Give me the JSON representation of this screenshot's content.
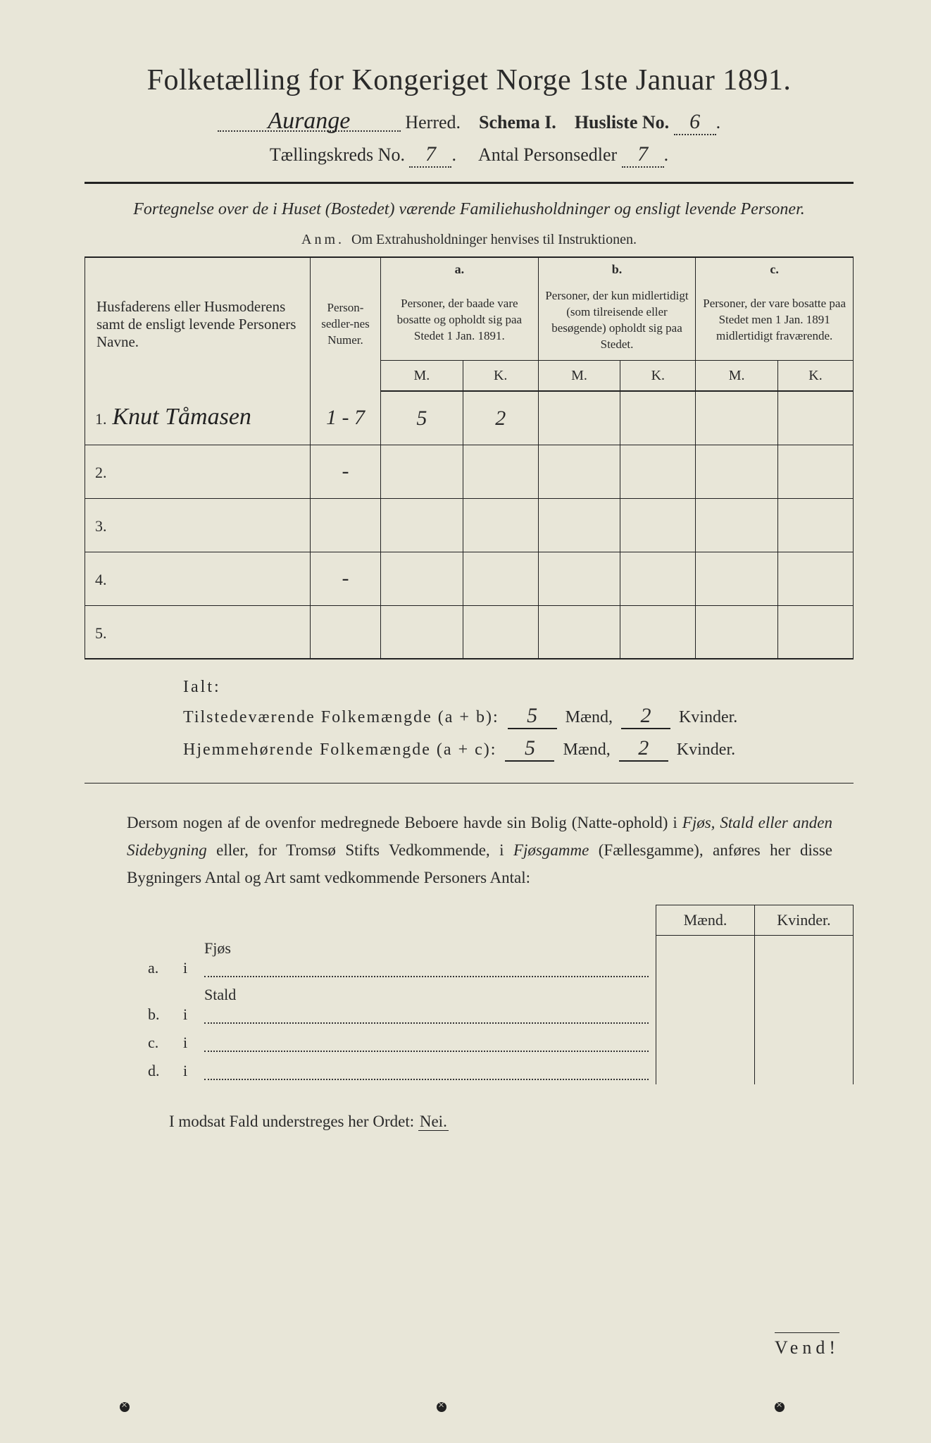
{
  "title": "Folketælling for Kongeriget Norge 1ste Januar 1891.",
  "header": {
    "herred_handwritten": "Aurange",
    "herred_label": "Herred.",
    "schema_label": "Schema I.",
    "husliste_label": "Husliste No.",
    "husliste_value": "6",
    "kreds_label": "Tællingskreds No.",
    "kreds_value": "7",
    "personsedler_label": "Antal Personsedler",
    "personsedler_value": "7"
  },
  "section_title": "Fortegnelse over de i Huset (Bostedet) værende Familiehusholdninger og ensligt levende Personer.",
  "anm": {
    "label": "Anm.",
    "text": "Om Extrahusholdninger henvises til Instruktionen."
  },
  "columns": {
    "name_header": "Husfaderens eller Husmoderens samt de ensligt levende Personers Navne.",
    "numer_header": "Person-sedler-nes Numer.",
    "a_label": "a.",
    "a_text": "Personer, der baade vare bosatte og opholdt sig paa Stedet 1 Jan. 1891.",
    "b_label": "b.",
    "b_text": "Personer, der kun midlertidigt (som tilreisende eller besøgende) opholdt sig paa Stedet.",
    "c_label": "c.",
    "c_text": "Personer, der vare bosatte paa Stedet men 1 Jan. 1891 midlertidigt fraværende.",
    "M": "M.",
    "K": "K."
  },
  "rows": [
    {
      "n": "1.",
      "name": "Knut Tåmasen",
      "numer": "1 - 7",
      "aM": "5",
      "aK": "2",
      "bM": "",
      "bK": "",
      "cM": "",
      "cK": ""
    },
    {
      "n": "2.",
      "name": "",
      "numer": "-",
      "aM": "",
      "aK": "",
      "bM": "",
      "bK": "",
      "cM": "",
      "cK": ""
    },
    {
      "n": "3.",
      "name": "",
      "numer": "",
      "aM": "",
      "aK": "",
      "bM": "",
      "bK": "",
      "cM": "",
      "cK": ""
    },
    {
      "n": "4.",
      "name": "",
      "numer": "-",
      "aM": "",
      "aK": "",
      "bM": "",
      "bK": "",
      "cM": "",
      "cK": ""
    },
    {
      "n": "5.",
      "name": "",
      "numer": "",
      "aM": "",
      "aK": "",
      "bM": "",
      "bK": "",
      "cM": "",
      "cK": ""
    }
  ],
  "totals": {
    "ialt": "Ialt:",
    "present_label": "Tilstedeværende Folkemængde (a + b):",
    "home_label": "Hjemmehørende Folkemængde (a + c):",
    "maend": "Mænd,",
    "kvinder": "Kvinder.",
    "present_m": "5",
    "present_k": "2",
    "home_m": "5",
    "home_k": "2"
  },
  "body_text": {
    "part1": "Dersom nogen af de ovenfor medregnede Beboere havde sin Bolig (Natte-ophold) i ",
    "em1": "Fjøs, Stald eller anden Sidebygning",
    "part2": " eller, for Tromsø Stifts Vedkommende, i ",
    "em2": "Fjøsgamme",
    "part3": " (Fællesgamme), anføres her disse Bygningers Antal og Art samt vedkommende Personers Antal:"
  },
  "side_table": {
    "maend": "Mænd.",
    "kvinder": "Kvinder.",
    "rows": [
      {
        "l": "a.",
        "i": "i",
        "name": "Fjøs"
      },
      {
        "l": "b.",
        "i": "i",
        "name": "Stald"
      },
      {
        "l": "c.",
        "i": "i",
        "name": ""
      },
      {
        "l": "d.",
        "i": "i",
        "name": ""
      }
    ]
  },
  "nei_line": {
    "text": "I modsat Fald understreges her Ordet: ",
    "word": "Nei."
  },
  "vend": "Vend!",
  "colors": {
    "bg": "#e8e6d8",
    "ink": "#2a2a2a",
    "rule": "#222222"
  }
}
